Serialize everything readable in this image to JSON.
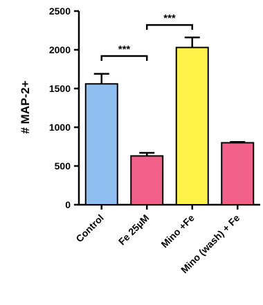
{
  "chart_data": {
    "type": "bar",
    "title": "",
    "xlabel": "",
    "ylabel": "# MAP-2+",
    "ylim": [
      0,
      2500
    ],
    "yticks": [
      0,
      500,
      1000,
      1500,
      2000,
      2500
    ],
    "categories": [
      "Control",
      "Fe 25µM",
      "Mino +Fe",
      "Mino (wash) + Fe"
    ],
    "values": [
      1560,
      630,
      2030,
      800
    ],
    "errors": [
      130,
      40,
      130,
      10
    ],
    "colors": [
      "#8fbff0",
      "#f06088",
      "#fff34a",
      "#f06088"
    ],
    "significance": [
      {
        "from": 0,
        "to": 1,
        "label": "***",
        "y": 1920
      },
      {
        "from": 1,
        "to": 2,
        "label": "***",
        "y": 2320
      }
    ]
  }
}
